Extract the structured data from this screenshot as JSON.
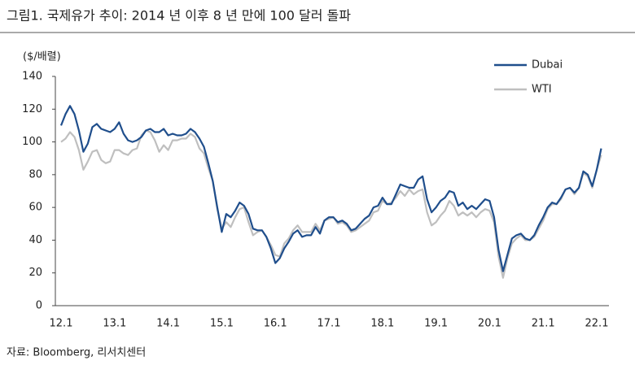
{
  "chart_data": {
    "type": "line",
    "title": "그림1. 국제유가 추이: 2014 년 이후 8 년 만에 100 달러 돌파",
    "y_label": "($/배렬)",
    "source": "자료: Bloomberg, 리서치센터",
    "categories": [
      "12.1",
      null,
      null,
      null,
      null,
      null,
      null,
      null,
      null,
      null,
      null,
      null,
      "13.1",
      null,
      null,
      null,
      null,
      null,
      null,
      null,
      null,
      null,
      null,
      null,
      "14.1",
      null,
      null,
      null,
      null,
      null,
      null,
      null,
      null,
      null,
      null,
      null,
      "15.1",
      null,
      null,
      null,
      null,
      null,
      null,
      null,
      null,
      null,
      null,
      null,
      "16.1",
      null,
      null,
      null,
      null,
      null,
      null,
      null,
      null,
      null,
      null,
      null,
      "17.1",
      null,
      null,
      null,
      null,
      null,
      null,
      null,
      null,
      null,
      null,
      null,
      "18.1",
      null,
      null,
      null,
      null,
      null,
      null,
      null,
      null,
      null,
      null,
      null,
      "19.1",
      null,
      null,
      null,
      null,
      null,
      null,
      null,
      null,
      null,
      null,
      null,
      "20.1",
      null,
      null,
      null,
      null,
      null,
      null,
      null,
      null,
      null,
      null,
      null,
      "21.1",
      null,
      null,
      null,
      null,
      null,
      null,
      null,
      null,
      null,
      null,
      null,
      "22.1",
      null
    ],
    "series": [
      {
        "name": "Dubai",
        "color": "#1f4e8c",
        "values": [
          110,
          117,
          122,
          117,
          107,
          94,
          99,
          109,
          111,
          108,
          107,
          106,
          108,
          112,
          105,
          101,
          100,
          101,
          103,
          107,
          108,
          106,
          106,
          108,
          104,
          105,
          104,
          104,
          105,
          108,
          106,
          102,
          97,
          87,
          76,
          60,
          45,
          56,
          54,
          58,
          63,
          61,
          56,
          47,
          46,
          46,
          42,
          35,
          26,
          29,
          35,
          39,
          44,
          46,
          42,
          43,
          43,
          48,
          44,
          52,
          54,
          54,
          51,
          52,
          50,
          46,
          47,
          50,
          53,
          55,
          60,
          61,
          66,
          62,
          62,
          68,
          74,
          73,
          72,
          72,
          77,
          79,
          65,
          57,
          60,
          64,
          66,
          70,
          69,
          61,
          63,
          59,
          61,
          59,
          62,
          65,
          64,
          54,
          34,
          21,
          31,
          41,
          43,
          44,
          41,
          40,
          43,
          49,
          54,
          60,
          63,
          62,
          66,
          71,
          72,
          69,
          72,
          82,
          80,
          73,
          83,
          96
        ]
      },
      {
        "name": "WTI",
        "color": "#bfbfbf",
        "values": [
          100,
          102,
          106,
          103,
          95,
          83,
          88,
          94,
          95,
          89,
          87,
          88,
          95,
          95,
          93,
          92,
          95,
          96,
          104,
          107,
          106,
          101,
          94,
          98,
          95,
          101,
          101,
          102,
          102,
          105,
          103,
          96,
          93,
          84,
          76,
          59,
          47,
          51,
          48,
          54,
          59,
          60,
          51,
          43,
          45,
          46,
          42,
          37,
          31,
          30,
          38,
          41,
          46,
          49,
          45,
          45,
          45,
          50,
          46,
          52,
          53,
          54,
          50,
          51,
          49,
          45,
          46,
          48,
          50,
          52,
          57,
          58,
          64,
          62,
          63,
          66,
          70,
          67,
          71,
          68,
          70,
          71,
          57,
          49,
          51,
          55,
          58,
          64,
          61,
          55,
          57,
          55,
          57,
          54,
          57,
          59,
          58,
          51,
          30,
          17,
          29,
          38,
          41,
          43,
          40,
          40,
          42,
          47,
          52,
          59,
          62,
          62,
          65,
          71,
          72,
          68,
          72,
          81,
          79,
          72,
          83,
          92
        ]
      }
    ],
    "ylim": [
      0,
      140
    ],
    "yticks": [
      0,
      20,
      40,
      60,
      80,
      100,
      120,
      140
    ],
    "grid": false,
    "legend": "upper right"
  }
}
